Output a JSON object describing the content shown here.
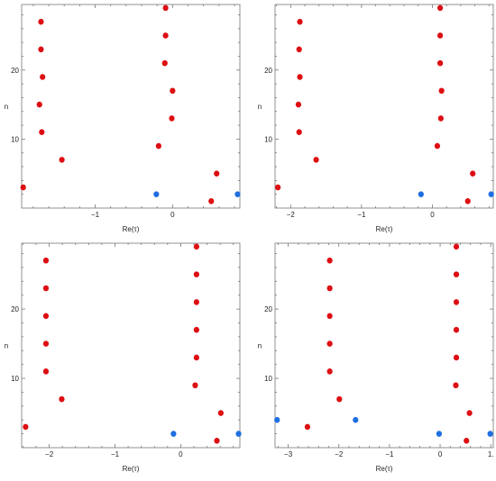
{
  "colors": {
    "red": "#dd0e12",
    "blue": "#1f6fe0",
    "frame": "#777777"
  },
  "chart_data": [
    {
      "type": "scatter",
      "xlabel": "Re(τ)",
      "ylabel": "n",
      "xlim": [
        -1.95,
        0.87
      ],
      "ylim": [
        0,
        29.5
      ],
      "xticks": [
        {
          "v": -1,
          "label": "−1"
        },
        {
          "v": 0,
          "label": "0"
        }
      ],
      "yticks": [
        {
          "v": 10,
          "label": "10"
        },
        {
          "v": 20,
          "label": "20"
        }
      ],
      "series": [
        {
          "color": "red",
          "points": [
            [
              -1.93,
              3
            ],
            [
              -1.43,
              7
            ],
            [
              -1.69,
              11
            ],
            [
              -1.72,
              15
            ],
            [
              -1.68,
              19
            ],
            [
              -1.7,
              23
            ],
            [
              -1.7,
              27
            ],
            [
              -0.18,
              9
            ],
            [
              -0.01,
              13
            ],
            [
              0.0,
              17
            ],
            [
              -0.1,
              21
            ],
            [
              -0.09,
              25
            ],
            [
              -0.09,
              29
            ],
            [
              0.57,
              5
            ],
            [
              0.5,
              1
            ]
          ]
        },
        {
          "color": "blue",
          "points": [
            [
              -0.21,
              2
            ],
            [
              0.84,
              2
            ]
          ]
        }
      ]
    },
    {
      "type": "scatter",
      "xlabel": "Re(τ)",
      "ylabel": "n",
      "xlim": [
        -2.22,
        0.86
      ],
      "ylim": [
        0,
        29.5
      ],
      "xticks": [
        {
          "v": -2,
          "label": "−2"
        },
        {
          "v": -1,
          "label": "−1"
        },
        {
          "v": 0,
          "label": "0"
        }
      ],
      "yticks": [
        {
          "v": 10,
          "label": "10"
        },
        {
          "v": 20,
          "label": "20"
        }
      ],
      "series": [
        {
          "color": "red",
          "points": [
            [
              -2.18,
              3
            ],
            [
              -1.64,
              7
            ],
            [
              -1.88,
              11
            ],
            [
              -1.89,
              15
            ],
            [
              -1.87,
              19
            ],
            [
              -1.88,
              23
            ],
            [
              -1.87,
              27
            ],
            [
              0.07,
              9
            ],
            [
              0.12,
              13
            ],
            [
              0.13,
              17
            ],
            [
              0.11,
              21
            ],
            [
              0.11,
              25
            ],
            [
              0.11,
              29
            ],
            [
              0.57,
              5
            ],
            [
              0.5,
              1
            ]
          ]
        },
        {
          "color": "blue",
          "points": [
            [
              -0.16,
              2
            ],
            [
              0.83,
              2
            ]
          ]
        }
      ]
    },
    {
      "type": "scatter",
      "xlabel": "Re(τ)",
      "ylabel": "n",
      "xlim": [
        -2.42,
        0.9
      ],
      "ylim": [
        0,
        29.5
      ],
      "xticks": [
        {
          "v": -2,
          "label": "−2"
        },
        {
          "v": -1,
          "label": "−1"
        },
        {
          "v": 0,
          "label": "0"
        }
      ],
      "yticks": [
        {
          "v": 10,
          "label": "10"
        },
        {
          "v": 20,
          "label": "20"
        }
      ],
      "series": [
        {
          "color": "red",
          "points": [
            [
              -2.36,
              3
            ],
            [
              -1.81,
              7
            ],
            [
              -2.05,
              11
            ],
            [
              -2.05,
              15
            ],
            [
              -2.05,
              19
            ],
            [
              -2.05,
              23
            ],
            [
              -2.05,
              27
            ],
            [
              0.22,
              9
            ],
            [
              0.24,
              13
            ],
            [
              0.24,
              17
            ],
            [
              0.24,
              21
            ],
            [
              0.24,
              25
            ],
            [
              0.24,
              29
            ],
            [
              0.61,
              5
            ],
            [
              0.55,
              1
            ]
          ]
        },
        {
          "color": "blue",
          "points": [
            [
              -0.11,
              2
            ],
            [
              0.88,
              2
            ]
          ]
        }
      ]
    },
    {
      "type": "scatter",
      "xlabel": "Re(τ)",
      "ylabel": "n",
      "xlim": [
        -3.26,
        1.05
      ],
      "ylim": [
        0,
        29.5
      ],
      "xticks": [
        {
          "v": -3,
          "label": "−3"
        },
        {
          "v": -2,
          "label": "−2"
        },
        {
          "v": -1,
          "label": "−1"
        },
        {
          "v": 0,
          "label": "0"
        },
        {
          "v": 1,
          "label": "1."
        }
      ],
      "yticks": [
        {
          "v": 10,
          "label": "10"
        },
        {
          "v": 20,
          "label": "20"
        }
      ],
      "series": [
        {
          "color": "red",
          "points": [
            [
              -2.62,
              3
            ],
            [
              -1.99,
              7
            ],
            [
              -2.18,
              11
            ],
            [
              -2.18,
              15
            ],
            [
              -2.18,
              19
            ],
            [
              -2.18,
              23
            ],
            [
              -2.18,
              27
            ],
            [
              0.31,
              9
            ],
            [
              0.32,
              13
            ],
            [
              0.32,
              17
            ],
            [
              0.32,
              21
            ],
            [
              0.32,
              25
            ],
            [
              0.32,
              29
            ],
            [
              0.52,
              1
            ],
            [
              0.58,
              5
            ]
          ]
        },
        {
          "color": "blue",
          "points": [
            [
              -3.22,
              4
            ],
            [
              -1.67,
              4
            ],
            [
              -0.02,
              2
            ],
            [
              0.99,
              2
            ]
          ]
        }
      ]
    }
  ]
}
